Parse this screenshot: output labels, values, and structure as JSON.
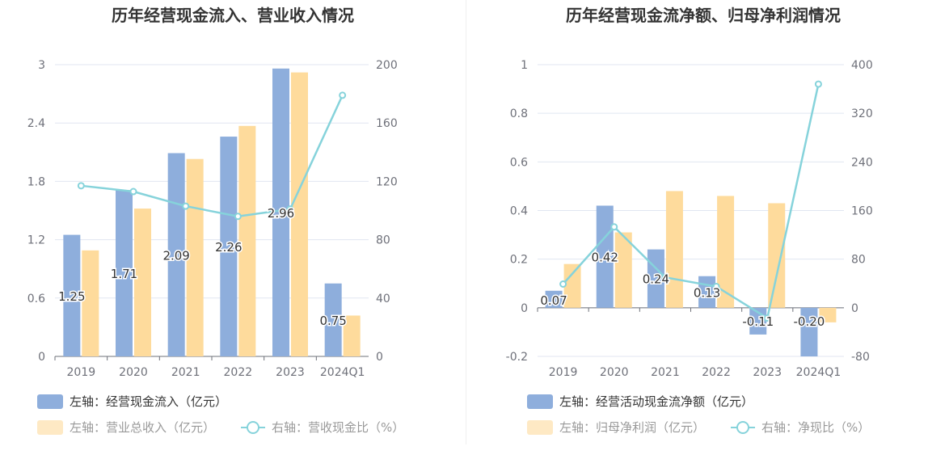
{
  "colors": {
    "bar_left": "#8eaedc",
    "bar_right": "#fedb9c",
    "line": "#86d3db",
    "axis_text": "#6e7079",
    "grid": "#e0e6f1",
    "title": "#333333"
  },
  "chart_data": [
    {
      "type": "bar",
      "title": "历年经营现金流入、营业收入情况",
      "categories": [
        "2019",
        "2020",
        "2021",
        "2022",
        "2023",
        "2024Q1"
      ],
      "y_left": {
        "ticks": [
          "0",
          "0.6",
          "1.2",
          "1.8",
          "2.4",
          "3"
        ],
        "min": 0,
        "max": 3
      },
      "y_right": {
        "ticks": [
          "0",
          "40",
          "80",
          "120",
          "160",
          "200"
        ],
        "min": 0,
        "max": 200
      },
      "series": [
        {
          "name": "左轴：经营现金流入（亿元）",
          "kind": "bar",
          "axis": "left",
          "values": [
            1.25,
            1.71,
            2.09,
            2.26,
            2.96,
            0.75
          ],
          "labels": [
            "1.25",
            "1.71",
            "2.09",
            "2.26",
            "2.96",
            "0.75"
          ]
        },
        {
          "name": "左轴：营业总收入（亿元）",
          "kind": "bar",
          "axis": "left",
          "values": [
            1.09,
            1.52,
            2.03,
            2.37,
            2.92,
            0.42
          ]
        },
        {
          "name": "右轴：营收现金比（%）",
          "kind": "line",
          "axis": "right",
          "values": [
            117,
            113,
            103,
            96,
            101,
            179
          ]
        }
      ],
      "legend": [
        "左轴：经营现金流入（亿元）",
        "左轴：营业总收入（亿元）",
        "右轴：营收现金比（%）"
      ]
    },
    {
      "type": "bar",
      "title": "历年经营现金流净额、归母净利润情况",
      "categories": [
        "2019",
        "2020",
        "2021",
        "2022",
        "2023",
        "2024Q1"
      ],
      "y_left": {
        "ticks": [
          "-0.2",
          "0",
          "0.2",
          "0.4",
          "0.6",
          "0.8",
          "1"
        ],
        "min": -0.2,
        "max": 1
      },
      "y_right": {
        "ticks": [
          "-80",
          "0",
          "80",
          "160",
          "240",
          "320",
          "400"
        ],
        "min": -80,
        "max": 400
      },
      "series": [
        {
          "name": "左轴：经营活动现金流净额（亿元）",
          "kind": "bar",
          "axis": "left",
          "values": [
            0.07,
            0.42,
            0.24,
            0.13,
            -0.11,
            -0.2
          ],
          "labels": [
            "0.07",
            "0.42",
            "0.24",
            "0.13",
            "-0.11",
            "-0.20"
          ]
        },
        {
          "name": "左轴：归母净利润（亿元）",
          "kind": "bar",
          "axis": "left",
          "values": [
            0.18,
            0.31,
            0.48,
            0.46,
            0.43,
            -0.06
          ]
        },
        {
          "name": "右轴：净现比（%）",
          "kind": "line",
          "axis": "right",
          "values": [
            39,
            133,
            50,
            35,
            -17,
            368
          ]
        }
      ],
      "legend": [
        "左轴：经营活动现金流净额（亿元）",
        "左轴：归母净利润（亿元）",
        "右轴：净现比（%）"
      ]
    }
  ]
}
